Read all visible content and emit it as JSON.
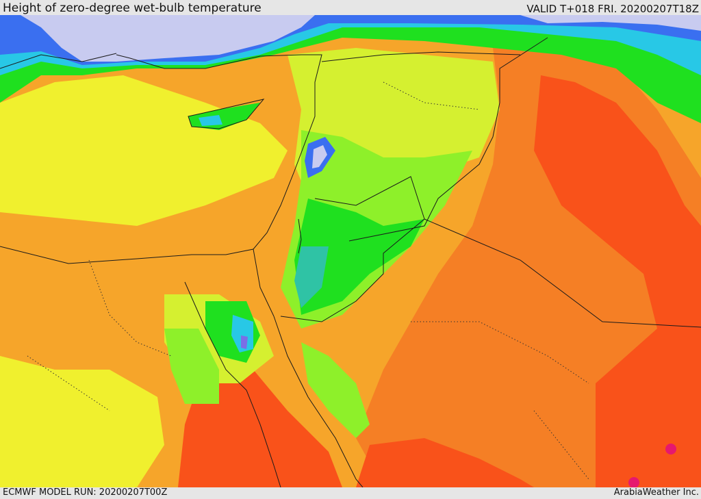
{
  "header": {
    "title": "Height of zero-degree wet-bulb temperature",
    "valid": "VALID T+018 FRI. 20200207T18Z"
  },
  "footer": {
    "model_run": "ECMWF MODEL RUN: 20200207T00Z",
    "credit": "ArabiaWeather Inc."
  },
  "palette": {
    "lavender": "#c8cbf0",
    "blue": "#3a6ff0",
    "cyan": "#28c8e6",
    "teal": "#2fc3a5",
    "green": "#1fe01f",
    "light_green": "#8ef02a",
    "yellow_green": "#d5f030",
    "yellow": "#f0f02e",
    "light_orange": "#f6c832",
    "orange": "#f6a52a",
    "dark_orange": "#f57f25",
    "red_orange": "#f9521a",
    "magenta": "#e6186e",
    "border": "#1a1a1a"
  }
}
